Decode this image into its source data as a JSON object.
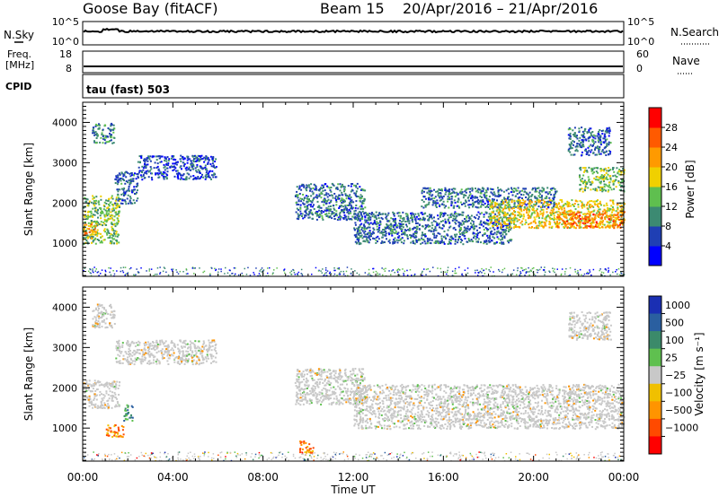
{
  "header": {
    "station": "Goose Bay (fitACF)",
    "beam": "Beam 15",
    "date_range": "20/Apr/2016 – 21/Apr/2016"
  },
  "top_panels": {
    "nsky": {
      "left_label": "N.Sky",
      "right_label": "N.Search",
      "left_ticks": [
        "10^5",
        "10^0"
      ],
      "right_ticks": [
        "10^5",
        "10^0"
      ]
    },
    "freq": {
      "left_label_line1": "Freq.",
      "left_label_line2": "[MHz]",
      "right_label": "Nave",
      "left_ticks": [
        "18",
        "8"
      ],
      "right_ticks": [
        "60",
        "0"
      ]
    },
    "cpid": {
      "left_label": "CPID",
      "mode_text": "tau (fast) 503"
    }
  },
  "colors": {
    "power_scale": [
      "#0000ff",
      "#1f3fb4",
      "#3c8a72",
      "#5fbf4f",
      "#f0d000",
      "#ff9a00",
      "#ff5a00",
      "#ff0000"
    ],
    "velocity_scale": [
      "#1a2fb3",
      "#2a5fa0",
      "#3b8a6a",
      "#5fc04f",
      "#c8c8c8",
      "#f0c000",
      "#ff9400",
      "#ff4a00",
      "#ff0000"
    ],
    "ground_scatter": "#c8c8c8"
  },
  "chart_data": [
    {
      "type": "heatmap",
      "name": "power_panel",
      "ylabel": "Slant Range [km]",
      "xlabel": "",
      "x_ticks": [
        "00:00",
        "04:00",
        "08:00",
        "12:00",
        "16:00",
        "20:00",
        "00:00"
      ],
      "x_range_hours": [
        0,
        24
      ],
      "y_ticks": [
        "1000",
        "2000",
        "3000",
        "4000"
      ],
      "ylim": [
        180,
        4500
      ],
      "colorbar": {
        "label": "Power [dB]",
        "ticks": [
          "4",
          "8",
          "12",
          "16",
          "20",
          "24",
          "28"
        ],
        "range": [
          0,
          32
        ]
      },
      "regions": [
        {
          "t": [
            0.0,
            1.6
          ],
          "r": [
            1000,
            2200
          ],
          "level": 14
        },
        {
          "t": [
            0.0,
            0.6
          ],
          "r": [
            1150,
            1500
          ],
          "level": 22
        },
        {
          "t": [
            0.4,
            1.4
          ],
          "r": [
            3500,
            4000
          ],
          "level": 10
        },
        {
          "t": [
            1.4,
            2.4
          ],
          "r": [
            2000,
            2800
          ],
          "level": 8
        },
        {
          "t": [
            2.4,
            5.9
          ],
          "r": [
            2600,
            3200
          ],
          "level": 6
        },
        {
          "t": [
            9.4,
            12.5
          ],
          "r": [
            1600,
            2500
          ],
          "level": 8
        },
        {
          "t": [
            12.0,
            19.0
          ],
          "r": [
            1000,
            1800
          ],
          "level": 8
        },
        {
          "t": [
            15.0,
            21.0
          ],
          "r": [
            1900,
            2400
          ],
          "level": 8
        },
        {
          "t": [
            18.0,
            24.0
          ],
          "r": [
            1400,
            2100
          ],
          "level": 18
        },
        {
          "t": [
            21.0,
            24.0
          ],
          "r": [
            1400,
            1800
          ],
          "level": 24
        },
        {
          "t": [
            21.5,
            23.4
          ],
          "r": [
            3200,
            3900
          ],
          "level": 8
        },
        {
          "t": [
            22.0,
            24.0
          ],
          "r": [
            2300,
            2900
          ],
          "level": 14
        }
      ]
    },
    {
      "type": "heatmap",
      "name": "velocity_panel",
      "ylabel": "Slant Range [km]",
      "xlabel": "Time UT",
      "x_ticks": [
        "00:00",
        "04:00",
        "08:00",
        "12:00",
        "16:00",
        "20:00",
        "00:00"
      ],
      "x_range_hours": [
        0,
        24
      ],
      "y_ticks": [
        "1000",
        "2000",
        "3000",
        "4000"
      ],
      "ylim": [
        180,
        4500
      ],
      "colorbar": {
        "label": "Velocity [m s⁻¹]",
        "ticks": [
          "1000",
          "500",
          "100",
          "25",
          "−25",
          "−100",
          "−500",
          "−1000"
        ]
      },
      "regions": [
        {
          "t": [
            0.0,
            1.6
          ],
          "r": [
            1500,
            2200
          ],
          "kind": "ground"
        },
        {
          "t": [
            0.4,
            1.4
          ],
          "r": [
            3500,
            4100
          ],
          "kind": "ground"
        },
        {
          "t": [
            1.4,
            5.9
          ],
          "r": [
            2600,
            3200
          ],
          "kind": "ground"
        },
        {
          "t": [
            1.0,
            1.8
          ],
          "r": [
            800,
            1100
          ],
          "kind": "negative"
        },
        {
          "t": [
            1.8,
            2.2
          ],
          "r": [
            1200,
            1600
          ],
          "kind": "positive"
        },
        {
          "t": [
            9.4,
            12.5
          ],
          "r": [
            1600,
            2500
          ],
          "kind": "ground"
        },
        {
          "t": [
            12.0,
            24.0
          ],
          "r": [
            1000,
            2100
          ],
          "kind": "ground"
        },
        {
          "t": [
            9.6,
            10.2
          ],
          "r": [
            400,
            700
          ],
          "kind": "negative"
        },
        {
          "t": [
            21.5,
            23.4
          ],
          "r": [
            3200,
            3900
          ],
          "kind": "ground"
        }
      ]
    }
  ]
}
